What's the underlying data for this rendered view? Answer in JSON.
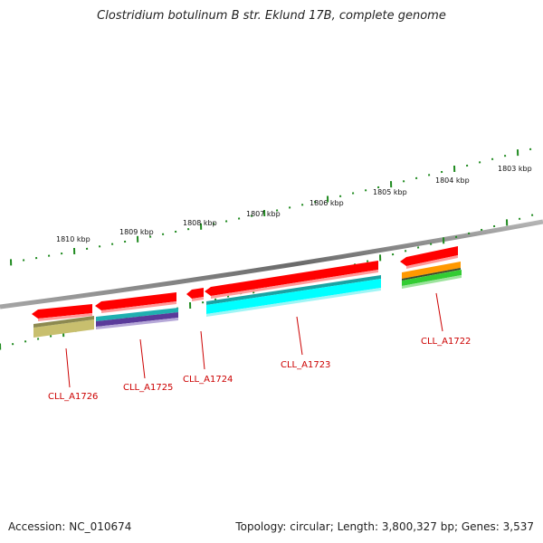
{
  "title": "Clostridium botulinum B str. Eklund 17B, complete genome",
  "footer": {
    "accession_label": "Accession:",
    "accession": "NC_010674",
    "topology_label": "Topology:",
    "topology": "circular",
    "length_label": "Length:",
    "length": "3,800,327 bp",
    "genes_label": "Genes:",
    "genes": "3,537"
  },
  "scale_labels": [
    "1810 kbp",
    "1809 kbp",
    "1808 kbp",
    "1807 kbp",
    "1806 kbp",
    "1805 kbp",
    "1804 kbp",
    "1803 kbp"
  ],
  "genes": [
    {
      "label": "CLL_A1726",
      "color": "#ff0000"
    },
    {
      "label": "CLL_A1725",
      "color": "#ff0000"
    },
    {
      "label": "CLL_A1724",
      "color": "#ff0000"
    },
    {
      "label": "CLL_A1723",
      "color": "#ff0000"
    },
    {
      "label": "CLL_A1722",
      "color": "#ff0000"
    }
  ],
  "colors": {
    "backbone": "#8a8a8a",
    "gene": "#ff0000",
    "tick": "#1f8a1f",
    "label": "#cc0000",
    "olive": "#c8bf6e",
    "cyan": "#00ffff",
    "teal": "#20b0b0",
    "purple": "#5a3a9a",
    "orange": "#ff9900",
    "green": "#33cc33"
  }
}
